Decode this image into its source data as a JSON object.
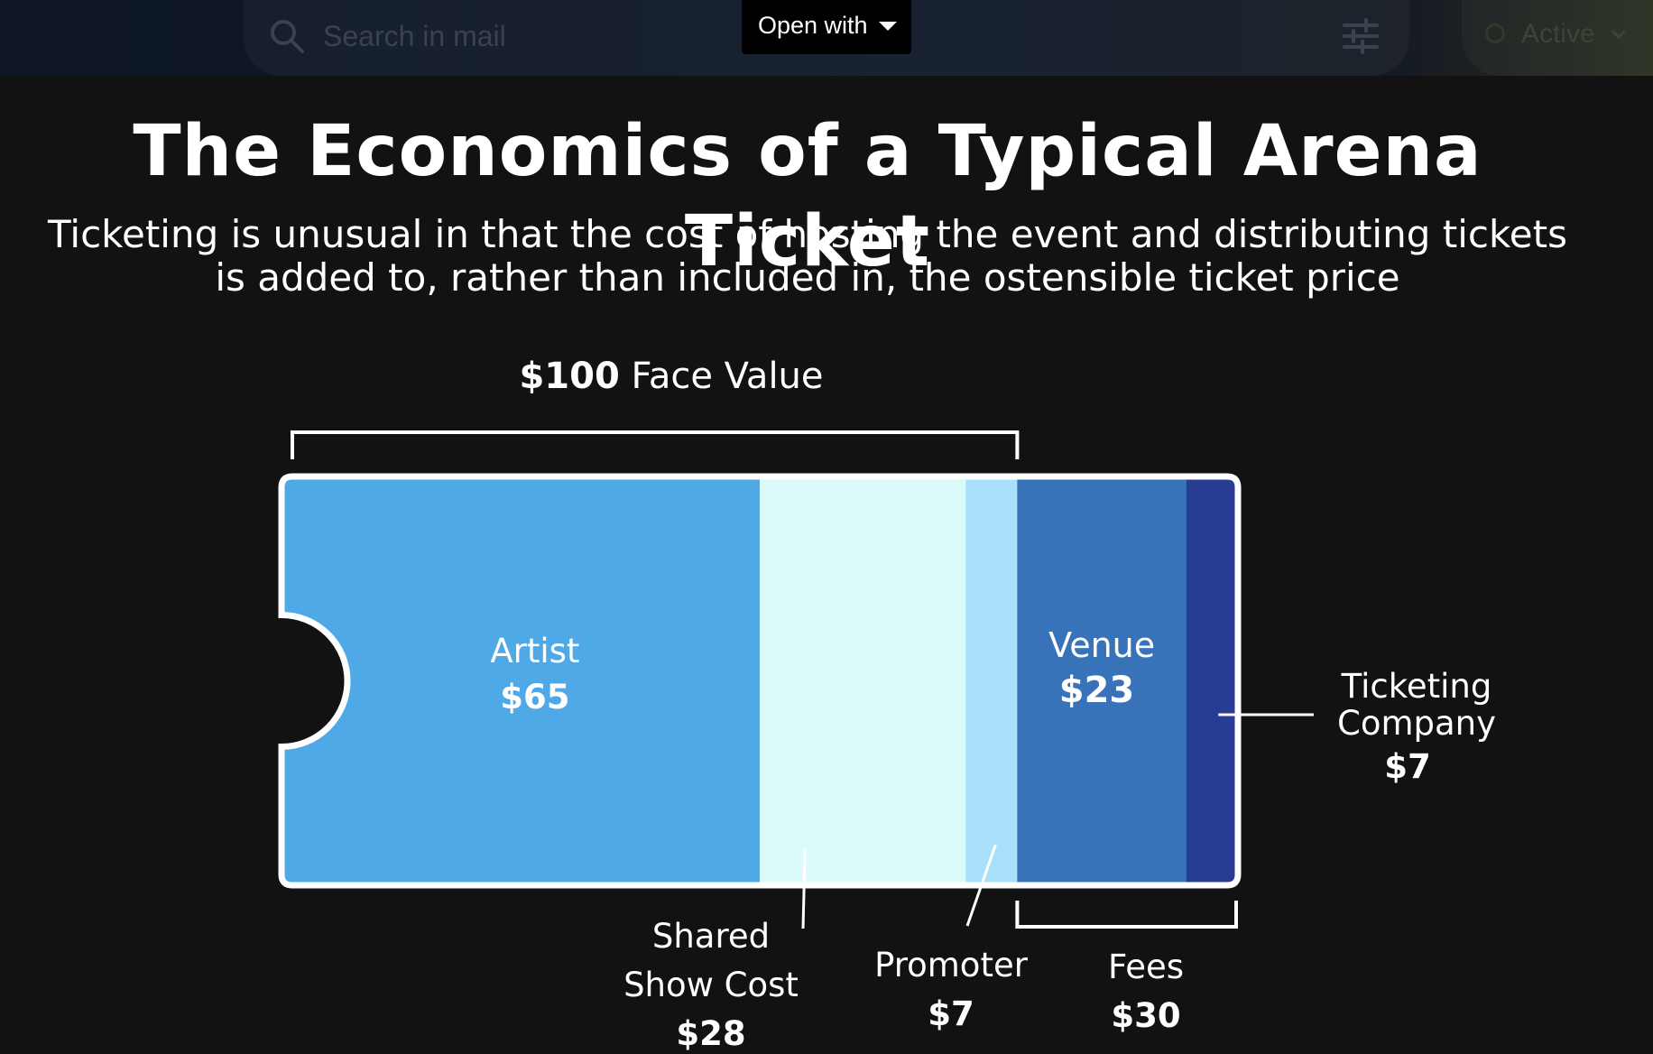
{
  "viewer": {
    "search_placeholder": "Search in mail",
    "open_with_label": "Open with",
    "status_label": "Active"
  },
  "chart_data": {
    "type": "bar",
    "orientation": "horizontal",
    "stacked": true,
    "title": "The Economics of a Typical Arena Ticket",
    "subtitle": "Ticketing is unusual in that the cost of hosting the event and distributing tickets is added to, rather than included in, the ostensible ticket price",
    "xlabel": "",
    "ylabel": "",
    "grid": false,
    "legend": "none",
    "total": 130,
    "segments": [
      {
        "name": "Artist",
        "value_label": "$65",
        "value": 65,
        "color": "#4ea9e6",
        "label_position": "inside"
      },
      {
        "name": "Shared Show Cost",
        "value_label": "$28",
        "value": 28,
        "color": "#dbfbfb",
        "label_position": "below"
      },
      {
        "name": "Promoter",
        "value_label": "$7",
        "value": 7,
        "color": "#a8e0fb",
        "label_position": "below"
      },
      {
        "name": "Venue",
        "value_label": "$23",
        "value": 23,
        "color": "#3872b8",
        "label_position": "inside"
      },
      {
        "name": "Ticketing Company",
        "value_label": "$7",
        "value": 7,
        "color": "#273c92",
        "label_position": "right"
      }
    ],
    "groups": [
      {
        "label_amount": "$100",
        "label_text": "Face Value",
        "value": 100,
        "covers": [
          "Artist",
          "Shared Show Cost",
          "Promoter"
        ],
        "position": "above"
      },
      {
        "label_text": "Fees",
        "label_amount": "$30",
        "value": 30,
        "covers": [
          "Venue",
          "Ticketing Company"
        ],
        "position": "below"
      }
    ]
  }
}
